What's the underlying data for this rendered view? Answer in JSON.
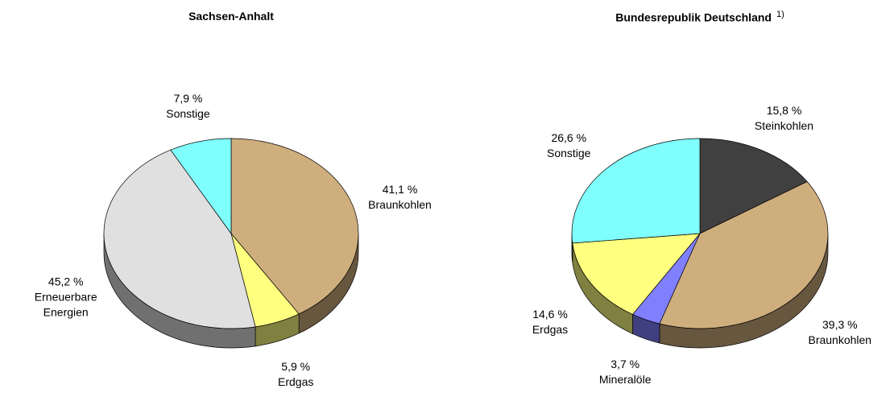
{
  "chart_data": [
    {
      "type": "pie",
      "title": "Sachsen-Anhalt",
      "categories": [
        "Braunkohlen",
        "Erdgas",
        "Erneuerbare Energien",
        "Sonstige"
      ],
      "values": [
        41.1,
        5.9,
        45.2,
        7.9
      ],
      "value_labels": [
        "41,1 %",
        "5,9 %",
        "45,2 %",
        "7,9 %"
      ],
      "colors": [
        "#cfae7e",
        "#ffff80",
        "#e0e0e0",
        "#80ffff"
      ]
    },
    {
      "type": "pie",
      "title": "Bundesrepublik Deutschland",
      "title_note": "1)",
      "categories": [
        "Steinkohlen",
        "Braunkohlen",
        "Mineralöle",
        "Erdgas",
        "Sonstige"
      ],
      "values": [
        15.8,
        39.3,
        3.7,
        14.6,
        26.6
      ],
      "value_labels": [
        "15,8 %",
        "39,3 %",
        "3,7 %",
        "14,6 %",
        "26,6 %"
      ],
      "colors": [
        "#404040",
        "#cfae7e",
        "#8080ff",
        "#ffff80",
        "#80ffff"
      ]
    }
  ]
}
